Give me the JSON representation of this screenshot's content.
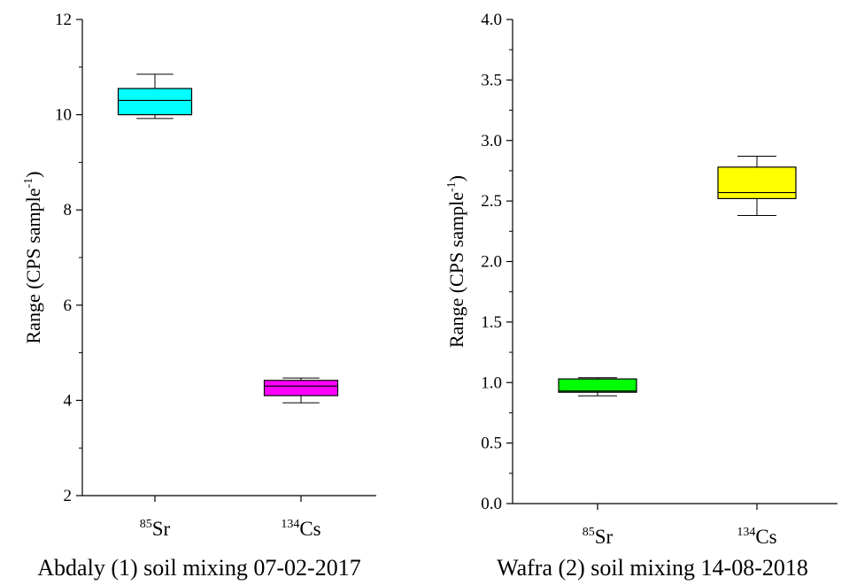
{
  "chart_data": [
    {
      "type": "box",
      "title": "Abdaly (1) soil mixing 07-02-2017",
      "ylabel": {
        "pre": "Range (CPS sample",
        "sup": "-1",
        "post": ")"
      },
      "ylim": [
        2,
        12
      ],
      "yticks": [
        "2",
        "4",
        "6",
        "8",
        "10",
        "12"
      ],
      "categories": [
        {
          "sup": "85",
          "base": "Sr"
        },
        {
          "sup": "134",
          "base": "Cs"
        }
      ],
      "boxes": [
        {
          "min": 9.92,
          "q1": 10.0,
          "median": 10.3,
          "q3": 10.55,
          "max": 10.85,
          "color": "#00ffff"
        },
        {
          "min": 3.95,
          "q1": 4.1,
          "median": 4.3,
          "q3": 4.42,
          "max": 4.47,
          "color": "#ff00ff"
        }
      ]
    },
    {
      "type": "box",
      "title": "Wafra (2) soil mixing 14-08-2018",
      "ylabel": {
        "pre": "Range (CPS sample",
        "sup": "-1",
        "post": ")"
      },
      "ylim": [
        0,
        4
      ],
      "yticks": [
        "0.0",
        "0.5",
        "1.0",
        "1.5",
        "2.0",
        "2.5",
        "3.0",
        "3.5",
        "4.0"
      ],
      "categories": [
        {
          "sup": "85",
          "base": "Sr"
        },
        {
          "sup": "134",
          "base": "Cs"
        }
      ],
      "boxes": [
        {
          "min": 0.89,
          "q1": 0.92,
          "median": 0.93,
          "q3": 1.03,
          "max": 1.04,
          "color": "#00ff00"
        },
        {
          "min": 2.38,
          "q1": 2.52,
          "median": 2.57,
          "q3": 2.78,
          "max": 2.87,
          "color": "#ffff00"
        }
      ]
    }
  ]
}
